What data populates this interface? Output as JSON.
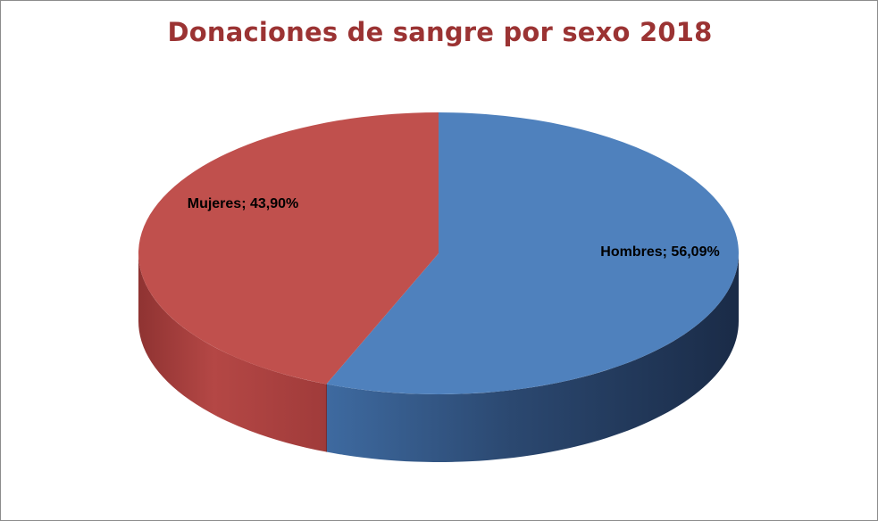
{
  "chart_data": {
    "type": "pie",
    "title": "Donaciones de sangre por sexo 2018",
    "three_d": true,
    "legend": "none",
    "slices": [
      {
        "name": "Hombres",
        "value": 56.09,
        "label": "Hombres; 56,09%",
        "color": "#4f81bd"
      },
      {
        "name": "Mujeres",
        "value": 43.9,
        "label": "Mujeres; 43,90%",
        "color": "#c0504d"
      }
    ]
  }
}
